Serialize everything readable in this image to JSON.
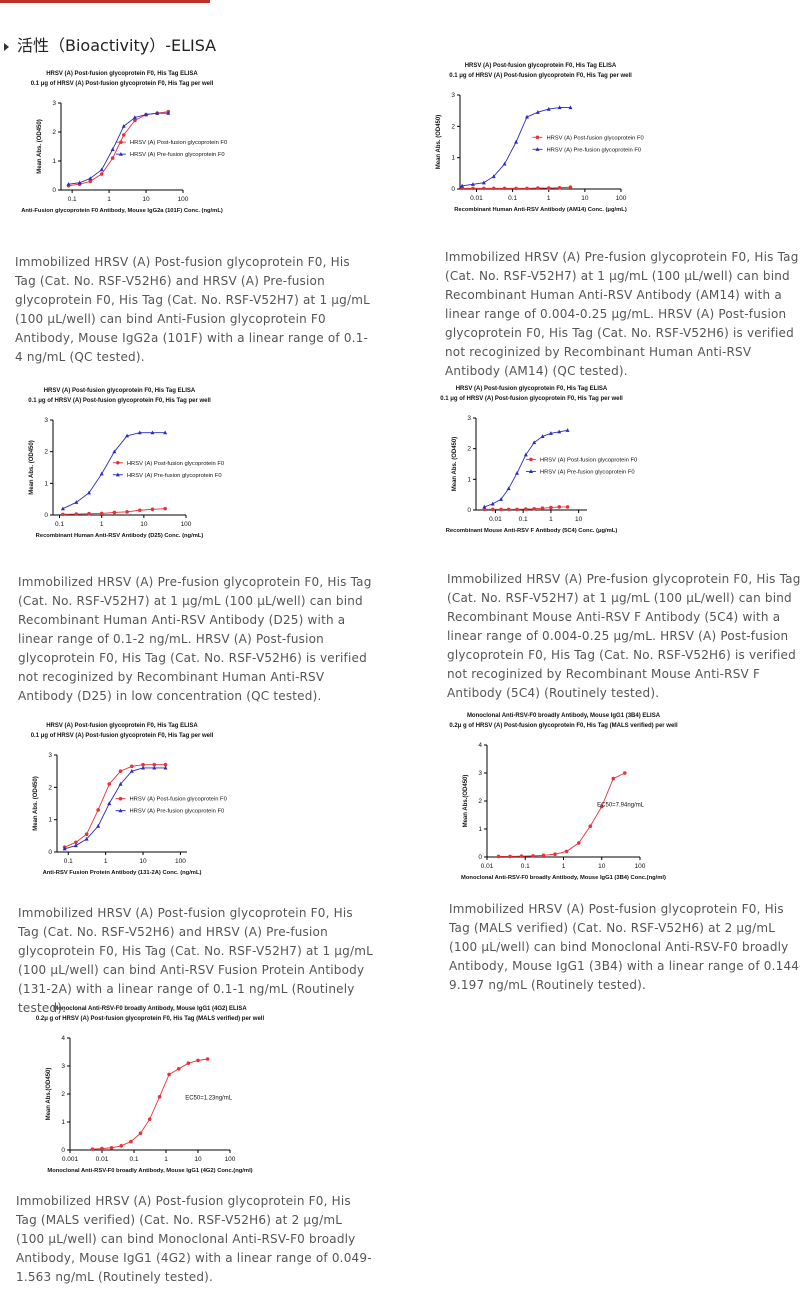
{
  "header": {
    "title": "活性（Bioactivity）-ELISA"
  },
  "chart_data": [
    {
      "type": "line",
      "xscale": "log",
      "legend": "center right",
      "title": "HRSV (A) Post-fusion glycoprotein F0, His Tag ELISA",
      "subtitle": "0.1 μg of HRSV (A) Post-fusion glycoprotein F0, His Tag per well",
      "x_label": "Anti-Fusion glycoprotein F0 Antibody, Mouse IgG2a (101F) Conc. (ng/mL)",
      "y_label": "Mean Abs. (OD450)",
      "x": [
        0.08,
        0.16,
        0.31,
        0.63,
        1.25,
        2.5,
        5,
        10,
        20,
        40
      ],
      "series": [
        {
          "name": "HRSV (A) Post-fusion glycoprotein F0",
          "color": "#e8313a",
          "marker": "circle",
          "values": [
            0.15,
            0.2,
            0.3,
            0.55,
            1.1,
            1.9,
            2.4,
            2.6,
            2.65,
            2.7
          ]
        },
        {
          "name": "HRSV (A) Pre-fusion glycoprotein F0",
          "color": "#2b2bbf",
          "marker": "triangle",
          "values": [
            0.2,
            0.25,
            0.4,
            0.7,
            1.4,
            2.2,
            2.5,
            2.6,
            2.65,
            2.65
          ]
        }
      ],
      "xlim": [
        0.05,
        100
      ],
      "xticks": [
        0.1,
        1,
        10,
        100
      ],
      "ylim": [
        0,
        3
      ],
      "yticks": [
        0,
        1,
        2,
        3
      ]
    },
    {
      "type": "line",
      "xscale": "log",
      "legend": "center right",
      "title": "HRSV (A) Post-fusion glycoprotein F0, His Tag ELISA",
      "subtitle": "0.1 μg of HRSV (A) Post-fusion glycoprotein F0, His Tag per well",
      "x_label": "Recombinant Human Anti-RSV Antibody (AM14) Conc. (μg/mL)",
      "y_label": "Mean Abs. (OD450)",
      "x": [
        0.004,
        0.008,
        0.016,
        0.03,
        0.06,
        0.125,
        0.25,
        0.5,
        1,
        2,
        4
      ],
      "series": [
        {
          "name": "HRSV (A) Post-fusion glycoprotein F0",
          "color": "#e8313a",
          "marker": "circle",
          "values": [
            0.02,
            0.02,
            0.02,
            0.02,
            0.02,
            0.02,
            0.02,
            0.03,
            0.03,
            0.04,
            0.06
          ]
        },
        {
          "name": "HRSV (A) Pre-fusion glycoprotein F0",
          "color": "#2b2bbf",
          "marker": "triangle",
          "values": [
            0.1,
            0.15,
            0.2,
            0.4,
            0.8,
            1.5,
            2.3,
            2.45,
            2.55,
            2.6,
            2.6
          ]
        }
      ],
      "xlim": [
        0.0035,
        100
      ],
      "xticks": [
        0.01,
        0.1,
        1,
        10,
        100
      ],
      "ylim": [
        0,
        3
      ],
      "yticks": [
        0,
        1,
        2,
        3
      ]
    },
    {
      "type": "line",
      "xscale": "log",
      "legend": "center right",
      "title": "HRSV (A) Post-fusion glycoprotein F0, His Tag ELISA",
      "subtitle": "0.1 μg of HRSV (A) Post-fusion glycoprotein F0, His Tag per well",
      "x_label": "Recombinant Human Anti-RSV Antibody (D25) Conc. (ng/mL)",
      "y_label": "Mean Abs. (OD450)",
      "x": [
        0.12,
        0.25,
        0.5,
        1,
        2,
        4,
        8,
        16,
        32
      ],
      "series": [
        {
          "name": "HRSV (A) Post-fusion glycoprotein F0",
          "color": "#e8313a",
          "marker": "circle",
          "values": [
            0.02,
            0.03,
            0.04,
            0.05,
            0.08,
            0.1,
            0.15,
            0.18,
            0.2
          ]
        },
        {
          "name": "HRSV (A) Pre-fusion glycoprotein F0",
          "color": "#2b2bbf",
          "marker": "triangle",
          "values": [
            0.2,
            0.4,
            0.7,
            1.3,
            2.0,
            2.5,
            2.6,
            2.6,
            2.6
          ]
        }
      ],
      "xlim": [
        0.07,
        100
      ],
      "xticks": [
        0.1,
        1,
        10,
        100
      ],
      "ylim": [
        0,
        3
      ],
      "yticks": [
        0,
        1,
        2,
        3
      ]
    },
    {
      "type": "line",
      "xscale": "log",
      "legend": "center right",
      "title": "HRSV (A) Post-fusion glycoprotein F0, His Tag ELISA",
      "subtitle": "0.1 μg of HRSV (A) Post-fusion glycoprotein F0, His Tag per well",
      "x_label": "Recombinant Mouse Anti-RSV F Antibody (5C4) Conc. (μg/mL)",
      "y_label": "Mean Abs. (OD450)",
      "x": [
        0.004,
        0.008,
        0.016,
        0.03,
        0.06,
        0.125,
        0.25,
        0.5,
        1,
        2,
        4
      ],
      "series": [
        {
          "name": "HRSV (A) Post-fusion glycoprotein F0",
          "color": "#e8313a",
          "marker": "circle",
          "values": [
            0.02,
            0.02,
            0.02,
            0.02,
            0.02,
            0.03,
            0.04,
            0.06,
            0.08,
            0.1,
            0.1
          ]
        },
        {
          "name": "HRSV (A) Pre-fusion glycoprotein F0",
          "color": "#2b2bbf",
          "marker": "triangle",
          "values": [
            0.1,
            0.2,
            0.35,
            0.7,
            1.2,
            1.8,
            2.2,
            2.4,
            2.5,
            2.55,
            2.6
          ]
        }
      ],
      "xlim": [
        0.002,
        20
      ],
      "xticks": [
        0.01,
        0.1,
        1,
        10
      ],
      "ylim": [
        0,
        3
      ],
      "yticks": [
        0,
        1,
        2,
        3
      ]
    },
    {
      "type": "line",
      "xscale": "log",
      "legend": "center right",
      "title": "HRSV (A) Post-fusion glycoprotein F0, His Tag ELISA",
      "subtitle": "0.1 μg of HRSV (A) Post-fusion glycoprotein F0, His Tag per well",
      "x_label": "Anti-RSV Fusion Protein Antibody (131-2A) Conc. (ng/mL)",
      "y_label": "Mean Abs. (OD450)",
      "x": [
        0.08,
        0.16,
        0.31,
        0.63,
        1.25,
        2.5,
        5,
        10,
        20,
        40
      ],
      "series": [
        {
          "name": "HRSV (A) Post-fusion glycoprotein F0",
          "color": "#e8313a",
          "marker": "circle",
          "values": [
            0.15,
            0.3,
            0.55,
            1.3,
            2.1,
            2.5,
            2.65,
            2.7,
            2.7,
            2.7
          ]
        },
        {
          "name": "HRSV (A) Pre-fusion glycoprotein F0",
          "color": "#2b2bbf",
          "marker": "triangle",
          "values": [
            0.1,
            0.2,
            0.4,
            0.8,
            1.5,
            2.1,
            2.5,
            2.6,
            2.6,
            2.6
          ]
        }
      ],
      "xlim": [
        0.05,
        150
      ],
      "xticks": [
        0.1,
        1,
        10,
        100
      ],
      "ylim": [
        0,
        3
      ],
      "yticks": [
        0,
        1,
        2,
        3
      ]
    },
    {
      "type": "line",
      "xscale": "log",
      "title": "Monoclonal Anti-RSV-F0 broadly Antibody, Mouse IgG1 (3B4) ELISA",
      "subtitle": "0.2μ g of HRSV (A) Post-fusion glycoprotein F0, His Tag (MALS verified) per well",
      "x_label": "Monoclonal Anti-RSV-F0 broadly Antibody, Mouse IgG1 (3B4) Conc.(ng/ml)",
      "y_label": "Mean Abs.(OD450)",
      "annotation": "EC50=7.94ng/mL",
      "x": [
        0.02,
        0.04,
        0.08,
        0.16,
        0.3,
        0.6,
        1.2,
        2.5,
        5,
        10,
        20,
        40
      ],
      "series": [
        {
          "color": "#e8313a",
          "marker": "circle",
          "values": [
            0.02,
            0.02,
            0.03,
            0.04,
            0.06,
            0.1,
            0.2,
            0.5,
            1.1,
            1.8,
            2.8,
            3.0
          ]
        }
      ],
      "xlim": [
        0.01,
        100
      ],
      "xticks": [
        0.01,
        0.1,
        1,
        10,
        100
      ],
      "ylim": [
        0,
        4
      ],
      "yticks": [
        0,
        1,
        2,
        3,
        4
      ]
    },
    {
      "type": "line",
      "xscale": "log",
      "title": "Monoclonal Anti-RSV-F0 broadly Antibody, Mouse IgG1 (4G2) ELISA",
      "subtitle": "0.2μ g of HRSV (A) Post-fusion glycoprotein F0, His Tag (MALS verified) per well",
      "x_label": "Monoclonal Anti-RSV-F0 broadly Antibody, Mouse IgG1 (4G2) Conc.(ng/ml)",
      "y_label": "Mean Abs.(OD450)",
      "annotation": "EC50=1.23ng/mL",
      "x": [
        0.005,
        0.01,
        0.02,
        0.04,
        0.08,
        0.16,
        0.31,
        0.63,
        1.25,
        2.5,
        5,
        10,
        20
      ],
      "series": [
        {
          "color": "#e8313a",
          "marker": "circle",
          "values": [
            0.03,
            0.05,
            0.08,
            0.15,
            0.3,
            0.6,
            1.1,
            1.9,
            2.7,
            2.9,
            3.1,
            3.2,
            3.25
          ]
        }
      ],
      "xlim": [
        0.001,
        100
      ],
      "xticks": [
        0.001,
        0.01,
        0.1,
        1,
        10,
        100
      ],
      "ylim": [
        0,
        4
      ],
      "yticks": [
        0,
        1,
        2,
        3,
        4
      ]
    }
  ],
  "captions": [
    "Immobilized HRSV (A) Post-fusion glycoprotein F0, His Tag (Cat. No. RSF-V52H6) and HRSV (A) Pre-fusion glycoprotein F0, His Tag (Cat. No. RSF-V52H7) at 1 μg/mL (100 μL/well) can bind Anti-Fusion glycoprotein F0 Antibody, Mouse IgG2a (101F) with a linear range of 0.1-4 ng/mL (QC tested).",
    "Immobilized HRSV (A) Pre-fusion glycoprotein F0, His Tag (Cat. No. RSF-V52H7) at 1 μg/mL (100 μL/well) can bind Recombinant Human Anti-RSV Antibody (AM14) with a linear range of 0.004-0.25 μg/mL. HRSV (A) Post-fusion glycoprotein F0, His Tag (Cat. No. RSF-V52H6) is verified not recoginized by Recombinant Human Anti-RSV Antibody (AM14) (QC tested).",
    "Immobilized HRSV (A) Pre-fusion glycoprotein F0, His Tag (Cat. No. RSF-V52H7) at 1 μg/mL (100 μL/well) can bind Recombinant Human Anti-RSV Antibody (D25) with a linear range of 0.1-2 ng/mL. HRSV (A) Post-fusion glycoprotein F0, His Tag (Cat. No. RSF-V52H6) is verified not recoginized by Recombinant Human Anti-RSV Antibody (D25) in low concentration (QC tested).",
    "Immobilized HRSV (A) Pre-fusion glycoprotein F0, His Tag (Cat. No. RSF-V52H7) at 1 μg/mL (100 μL/well) can bind Recombinant Mouse Anti-RSV F Antibody (5C4) with a linear range of 0.004-0.25 μg/mL. HRSV (A) Post-fusion glycoprotein F0, His Tag (Cat. No. RSF-V52H6) is verified not recoginized by Recombinant Mouse Anti-RSV F Antibody (5C4) (Routinely tested).",
    "Immobilized HRSV (A) Post-fusion glycoprotein F0, His Tag (Cat. No. RSF-V52H6) and HRSV (A) Pre-fusion glycoprotein F0, His Tag (Cat. No. RSF-V52H7) at 1 μg/mL (100 μL/well) can bind Anti-RSV Fusion Protein Antibody (131-2A) with a linear range of 0.1-1 ng/mL (Routinely tested).",
    "Immobilized HRSV (A) Post-fusion glycoprotein F0, His Tag (MALS verified) (Cat. No. RSF-V52H6) at 2 μg/mL (100 μL/well) can bind Monoclonal Anti-RSV-F0 broadly Antibody, Mouse IgG1 (3B4) with a linear range of 0.144-9.197 ng/mL (Routinely tested).",
    "Immobilized HRSV (A) Post-fusion glycoprotein F0, His Tag (MALS verified) (Cat. No. RSF-V52H6) at 2 μg/mL (100 μL/well) can bind Monoclonal Anti-RSV-F0 broadly Antibody, Mouse IgG1 (4G2) with a linear range of 0.049-1.563 ng/mL (Routinely tested)."
  ]
}
